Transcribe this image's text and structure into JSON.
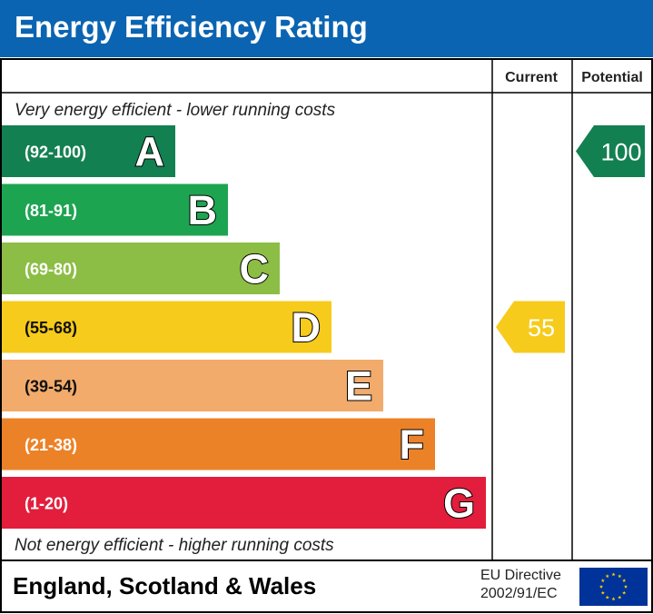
{
  "title": "Energy Efficiency Rating",
  "header": {
    "current": "Current",
    "potential": "Potential"
  },
  "top_caption": "Very energy efficient - lower running costs",
  "bottom_caption": "Not energy efficient - higher running costs",
  "footer": {
    "region": "England, Scotland & Wales",
    "eu_line1": "EU Directive",
    "eu_line2": "2002/91/EC"
  },
  "colors": {
    "title_bg": "#0a64b1",
    "A": "#138051",
    "B": "#1da451",
    "C": "#8cbd45",
    "D": "#f6cb1b",
    "E": "#f2ab6b",
    "F": "#ec8227",
    "G": "#e31d3c",
    "eu_flag": "#003399",
    "eu_stars": "#ffcc00"
  },
  "chart_data": {
    "type": "bar",
    "categories": [
      "A",
      "B",
      "C",
      "D",
      "E",
      "F",
      "G"
    ],
    "ranges": [
      "(92-100)",
      "(81-91)",
      "(69-80)",
      "(55-68)",
      "(39-54)",
      "(21-38)",
      "(1-20)"
    ],
    "current": {
      "value": 55,
      "band": "D"
    },
    "potential": {
      "value": 100,
      "band": "A"
    }
  }
}
